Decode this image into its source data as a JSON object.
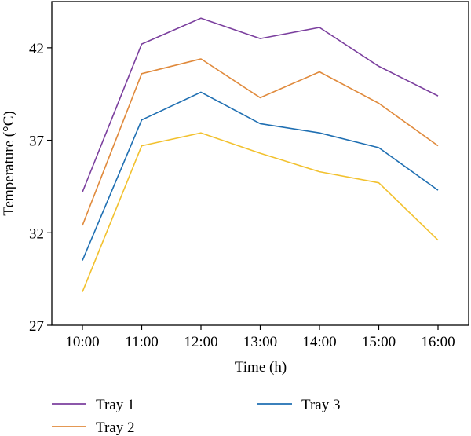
{
  "chart_data": {
    "type": "line",
    "title": "",
    "xlabel": "Time (h)",
    "ylabel": "Temperature (°C)",
    "categories": [
      "10:00",
      "11:00",
      "12:00",
      "13:00",
      "14:00",
      "15:00",
      "16:00"
    ],
    "ylim": [
      27,
      44.5
    ],
    "yticks": [
      27,
      32,
      37,
      42
    ],
    "grid": false,
    "legend_position": "bottom",
    "series": [
      {
        "name": "Tray 1",
        "color": "#7b3f9e",
        "values": [
          34.2,
          42.2,
          43.6,
          42.5,
          43.1,
          41.0,
          39.4
        ]
      },
      {
        "name": "Tray 2",
        "color": "#e08a3c",
        "values": [
          32.4,
          40.6,
          41.4,
          39.3,
          40.7,
          39.0,
          36.7
        ]
      },
      {
        "name": "Tray 3",
        "color": "#1f6fb2",
        "values": [
          30.5,
          38.1,
          39.6,
          37.9,
          37.4,
          36.6,
          34.3
        ]
      },
      {
        "name": "",
        "color": "#f2c12e",
        "values": [
          28.8,
          36.7,
          37.4,
          36.3,
          35.3,
          34.7,
          31.6
        ]
      }
    ]
  }
}
